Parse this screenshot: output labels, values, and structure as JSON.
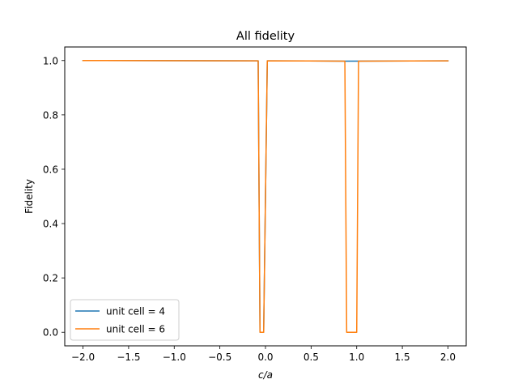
{
  "chart_data": {
    "type": "line",
    "title": "All fidelity",
    "xlabel": "c/a",
    "ylabel": "Fidelity",
    "xlim": [
      -2.2,
      2.2
    ],
    "ylim": [
      -0.05,
      1.05
    ],
    "xticks": [
      -2.0,
      -1.5,
      -1.0,
      -0.5,
      0.0,
      0.5,
      1.0,
      1.5,
      2.0
    ],
    "xtick_labels": [
      "−2.0",
      "−1.5",
      "−1.0",
      "−0.5",
      "0.0",
      "0.5",
      "1.0",
      "1.5",
      "2.0"
    ],
    "yticks": [
      0.0,
      0.2,
      0.4,
      0.6,
      0.8,
      1.0
    ],
    "ytick_labels": [
      "0.0",
      "0.2",
      "0.4",
      "0.6",
      "0.8",
      "1.0"
    ],
    "grid": false,
    "legend_position": "lower-left",
    "series": [
      {
        "name": "unit cell = 4",
        "color": "#1f77b4",
        "x": [
          -2.0,
          -0.08,
          -0.06,
          -0.02,
          0.02,
          0.87,
          2.0
        ],
        "y": [
          1.0,
          0.999,
          0.0,
          0.0,
          0.999,
          0.998,
          0.999
        ]
      },
      {
        "name": "unit cell = 6",
        "color": "#ff7f0e",
        "x": [
          -2.0,
          -0.08,
          -0.06,
          -0.02,
          0.02,
          0.87,
          0.89,
          1.0,
          1.02,
          2.0
        ],
        "y": [
          1.0,
          0.999,
          0.0,
          0.0,
          0.999,
          0.998,
          0.0,
          0.0,
          0.998,
          0.999
        ]
      }
    ]
  }
}
